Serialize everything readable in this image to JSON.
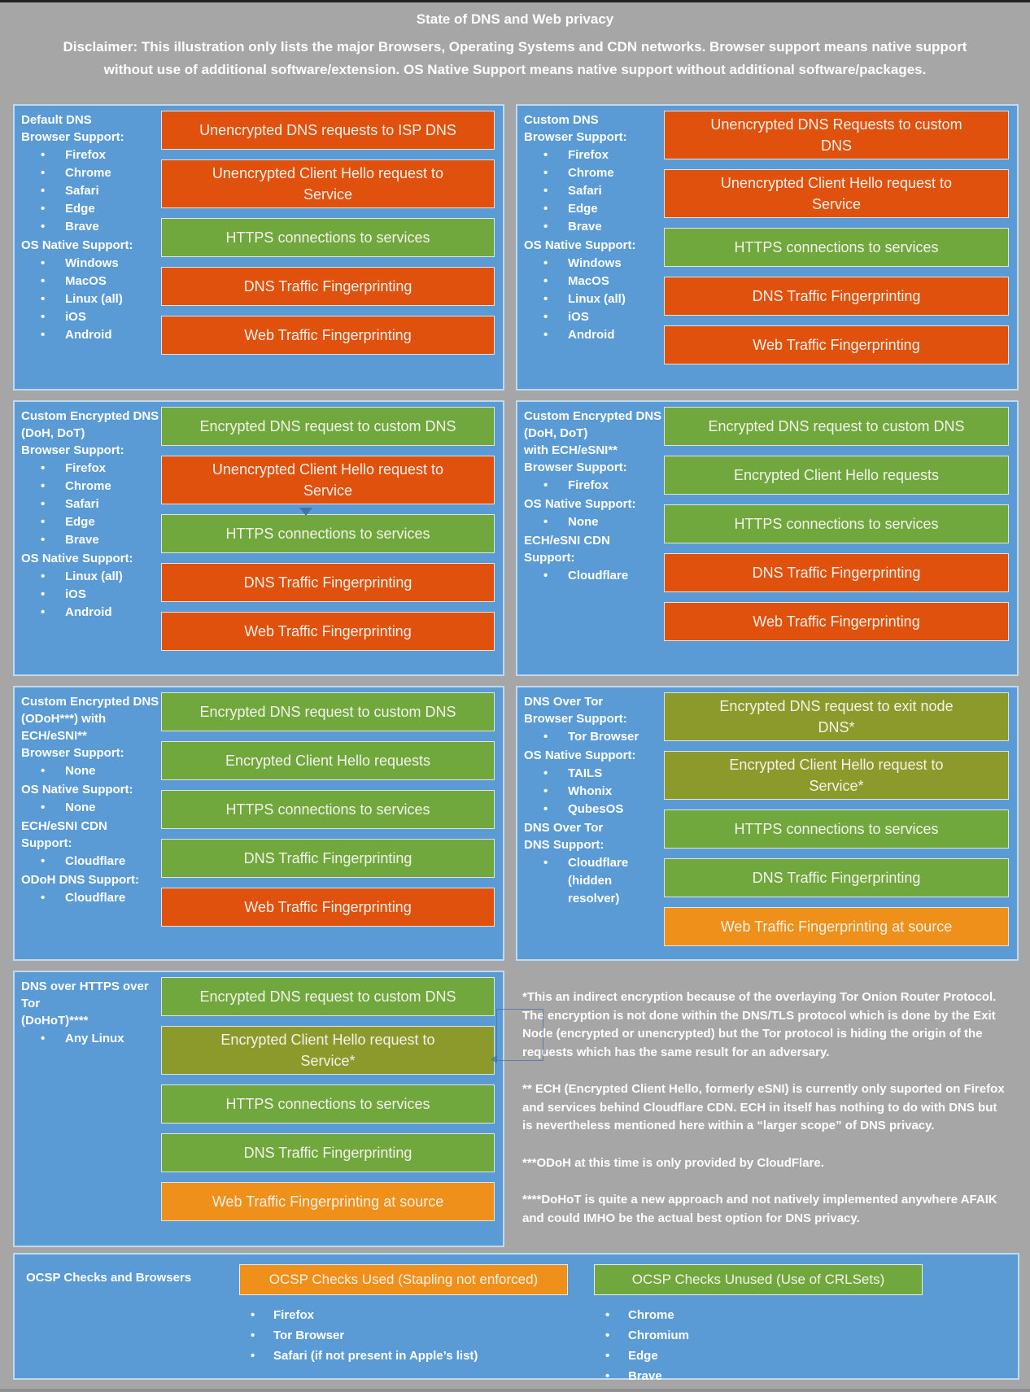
{
  "page": {
    "title": "State of DNS and Web privacy",
    "disclaimer": "Disclaimer: This illustration only lists the major Browsers, Operating Systems and CDN networks. Browser support means native support without use of additional software/extension. OS Native Support means native support without additional software/packages.",
    "background": "#A6A6A6"
  },
  "colors": {
    "panel_blue": "#5B9BD5",
    "bar_red": "#E0510E",
    "bar_green": "#70A83E",
    "bar_olive": "#8C9A2C",
    "bar_amber": "#EE901A"
  },
  "panels": [
    {
      "id": "default-dns",
      "title": "Default DNS",
      "sections": [
        {
          "label": "Browser Support:",
          "items": [
            "Firefox",
            "Chrome",
            "Safari",
            "Edge",
            "Brave"
          ]
        },
        {
          "label": "OS Native Support:",
          "items": [
            "Windows",
            "MacOS",
            "Linux (all)",
            "iOS",
            "Android"
          ]
        }
      ],
      "bars": [
        {
          "text": "Unencrypted DNS requests to ISP DNS",
          "color": "red"
        },
        {
          "text": "Unencrypted Client Hello request to\nService",
          "color": "red"
        },
        {
          "text": "HTTPS connections to services",
          "color": "green"
        },
        {
          "text": "DNS Traffic Fingerprinting",
          "color": "red"
        },
        {
          "text": "Web Traffic Fingerprinting",
          "color": "red"
        }
      ]
    },
    {
      "id": "custom-dns",
      "title": "Custom DNS",
      "sections": [
        {
          "label": "Browser Support:",
          "items": [
            "Firefox",
            "Chrome",
            "Safari",
            "Edge",
            "Brave"
          ]
        },
        {
          "label": "OS Native Support:",
          "items": [
            "Windows",
            "MacOS",
            "Linux (all)",
            "iOS",
            "Android"
          ]
        }
      ],
      "bars": [
        {
          "text": "Unencrypted DNS Requests to custom\nDNS",
          "color": "red"
        },
        {
          "text": "Unencrypted Client Hello request to\nService",
          "color": "red"
        },
        {
          "text": "HTTPS connections to services",
          "color": "green"
        },
        {
          "text": "DNS Traffic Fingerprinting",
          "color": "red"
        },
        {
          "text": "Web Traffic Fingerprinting",
          "color": "red"
        }
      ]
    },
    {
      "id": "custom-encrypted-dns-doh-dot",
      "title": "Custom Encrypted DNS\n(DoH, DoT)",
      "sections": [
        {
          "label": "Browser Support:",
          "items": [
            "Firefox",
            "Chrome",
            "Safari",
            "Edge",
            "Brave"
          ]
        },
        {
          "label": "OS Native Support:",
          "items": [
            "Linux (all)",
            "iOS",
            "Android"
          ]
        }
      ],
      "bars": [
        {
          "text": "Encrypted DNS request to custom DNS",
          "color": "green"
        },
        {
          "text": "Unencrypted Client Hello request to\nService",
          "color": "red"
        },
        {
          "text": "HTTPS connections to services",
          "color": "green"
        },
        {
          "text": "DNS Traffic Fingerprinting",
          "color": "red"
        },
        {
          "text": "Web Traffic Fingerprinting",
          "color": "red"
        }
      ]
    },
    {
      "id": "custom-encrypted-dns-ech",
      "title": "Custom Encrypted DNS\n(DoH, DoT)\nwith ECH/eSNI**",
      "sections": [
        {
          "label": "Browser Support:",
          "items": [
            "Firefox"
          ]
        },
        {
          "label": "OS Native Support:",
          "items": [
            "None"
          ]
        },
        {
          "label": "ECH/eSNI CDN Support:",
          "items": [
            "Cloudflare"
          ]
        }
      ],
      "bars": [
        {
          "text": "Encrypted DNS request to custom DNS",
          "color": "green"
        },
        {
          "text": "Encrypted Client Hello requests",
          "color": "green"
        },
        {
          "text": "HTTPS connections to services",
          "color": "green"
        },
        {
          "text": "DNS Traffic Fingerprinting",
          "color": "red"
        },
        {
          "text": "Web Traffic Fingerprinting",
          "color": "red"
        }
      ]
    },
    {
      "id": "custom-encrypted-dns-odoh",
      "title": "Custom Encrypted DNS\n(ODoH***) with\nECH/eSNI**",
      "sections": [
        {
          "label": "Browser Support:",
          "items": [
            "None"
          ]
        },
        {
          "label": "OS Native Support:",
          "items": [
            "None"
          ]
        },
        {
          "label": "ECH/eSNI CDN Support:",
          "items": [
            "Cloudflare"
          ]
        },
        {
          "label": "ODoH DNS Support:",
          "items": [
            "Cloudflare"
          ]
        }
      ],
      "bars": [
        {
          "text": "Encrypted DNS request to custom DNS",
          "color": "green"
        },
        {
          "text": "Encrypted Client Hello requests",
          "color": "green"
        },
        {
          "text": "HTTPS connections to services",
          "color": "green"
        },
        {
          "text": "DNS Traffic Fingerprinting",
          "color": "green"
        },
        {
          "text": "Web Traffic Fingerprinting",
          "color": "red"
        }
      ]
    },
    {
      "id": "dns-over-tor",
      "title": "DNS Over Tor",
      "sections": [
        {
          "label": "Browser Support:",
          "items": [
            "Tor Browser"
          ]
        },
        {
          "label": "OS Native Support:",
          "items": [
            "TAILS",
            "Whonix",
            "QubesOS"
          ]
        },
        {
          "label": "DNS Over Tor\nDNS Support:",
          "items": [
            "Cloudflare\n(hidden resolver)"
          ]
        }
      ],
      "bars": [
        {
          "text": "Encrypted DNS request to exit node\nDNS*",
          "color": "olive"
        },
        {
          "text": "Encrypted Client Hello request to\nService*",
          "color": "olive"
        },
        {
          "text": "HTTPS connections to services",
          "color": "green"
        },
        {
          "text": "DNS Traffic Fingerprinting",
          "color": "green"
        },
        {
          "text": "Web Traffic Fingerprinting at source",
          "color": "amber"
        }
      ]
    },
    {
      "id": "dohot",
      "title": "DNS over HTTPS over Tor\n(DoHoT)****",
      "sections": [
        {
          "label": "",
          "items": [
            "Any Linux"
          ]
        }
      ],
      "bars": [
        {
          "text": "Encrypted DNS request to custom DNS",
          "color": "green"
        },
        {
          "text": "Encrypted Client Hello request to\nService*",
          "color": "olive"
        },
        {
          "text": "HTTPS connections to services",
          "color": "green"
        },
        {
          "text": "DNS Traffic Fingerprinting",
          "color": "green"
        },
        {
          "text": "Web Traffic Fingerprinting at source",
          "color": "amber"
        }
      ]
    }
  ],
  "footnotes": [
    "*This an indirect encryption because of the overlaying Tor Onion Router Protocol. The encryption is not done within the DNS/TLS protocol which is done by the Exit Node (encrypted or unencrypted) but the Tor protocol is hiding the origin of the requests which has the same result for an adversary.",
    "** ECH (Encrypted Client Hello, formerly eSNI) is currently only suported on Firefox and services behind Cloudflare CDN. ECH in itself has nothing to do with DNS but is nevertheless mentioned here within a “larger scope” of DNS privacy.",
    "***ODoH at this time is only provided by CloudFlare.",
    "****DoHoT is quite a new approach and not natively implemented anywhere AFAIK and could IMHO be the actual best option for DNS privacy."
  ],
  "ocsp": {
    "title": "OCSP Checks and Browsers",
    "groups": [
      {
        "header": "OCSP Checks Used (Stapling not enforced)",
        "color": "amber",
        "items": [
          "Firefox",
          "Tor Browser",
          "Safari (if not present in Apple’s list)"
        ]
      },
      {
        "header": "OCSP Checks Unused (Use of CRLSets)",
        "color": "green",
        "items": [
          "Chrome",
          "Chromium",
          "Edge",
          "Brave"
        ]
      }
    ]
  }
}
